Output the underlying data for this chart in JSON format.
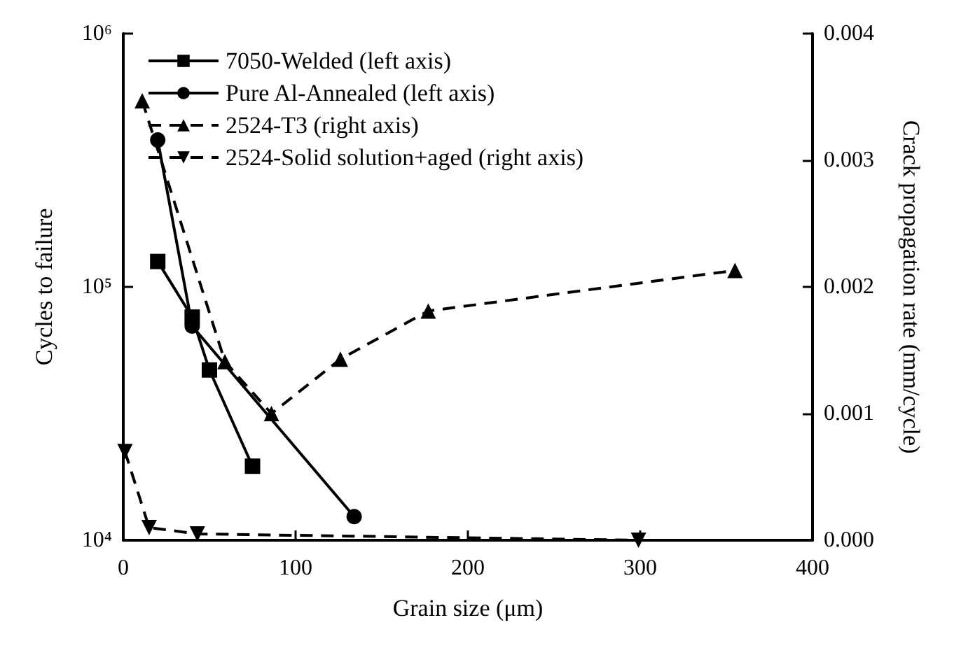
{
  "chart_data": {
    "type": "line",
    "xlabel": "Grain size (μm)",
    "ylabel": "Cycles to failure",
    "y2label": "Crack propagation rate (mm/cycle)",
    "xlim": [
      0,
      400
    ],
    "xticks": [
      0,
      100,
      200,
      300,
      400
    ],
    "ylim": [
      10000,
      1000000
    ],
    "yticks": [
      {
        "value": 10000,
        "label": "10⁴"
      },
      {
        "value": 100000,
        "label": "10⁵"
      },
      {
        "value": 1000000,
        "label": "10⁶"
      }
    ],
    "y2lim": [
      0,
      0.004
    ],
    "y2ticks": [
      {
        "value": 0,
        "label": "0.000"
      },
      {
        "value": 0.001,
        "label": "0.001"
      },
      {
        "value": 0.002,
        "label": "0.002"
      },
      {
        "value": 0.003,
        "label": "0.003"
      },
      {
        "value": 0.004,
        "label": "0.004"
      }
    ],
    "log": "y",
    "grid": false,
    "legend": "top left",
    "series": [
      {
        "name": "7050-Welded (left axis)",
        "color": "#000000",
        "marker": "square",
        "line_style": "solid",
        "x": [
          20,
          40,
          50,
          75
        ],
        "values": [
          126000,
          76000,
          47000,
          19600
        ]
      },
      {
        "name": "Pure Al-Annealed (left axis)",
        "color": "#000000",
        "marker": "circle",
        "line_style": "solid",
        "x": [
          20,
          40,
          134
        ],
        "values": [
          380000,
          70000,
          12400
        ]
      },
      {
        "name": "2524-T3 (right axis)",
        "color": "#000000",
        "marker": "triangle",
        "line_style": "dashed",
        "axis": "y2",
        "x": [
          11,
          59,
          86,
          126,
          177,
          355
        ],
        "values": [
          0.00347,
          0.00141,
          0.001,
          0.00143,
          0.00181,
          0.00213
        ]
      },
      {
        "name": "2524-Solid solution+aged (right axis)",
        "color": "#000000",
        "marker": "triangle-down",
        "line_style": "dashed",
        "axis": "y2",
        "x": [
          1,
          15,
          43,
          299
        ],
        "values": [
          0.0007,
          0.0001,
          5e-05,
          0
        ]
      }
    ]
  }
}
